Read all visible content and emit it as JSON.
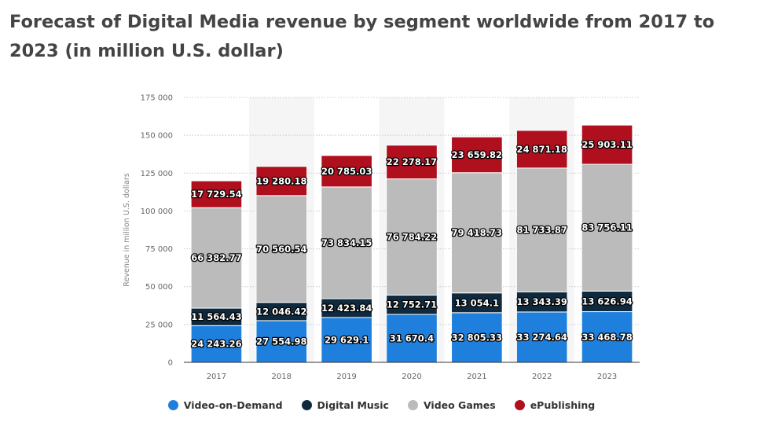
{
  "title": "Forecast of Digital Media revenue by segment worldwide from 2017 to 2023 (in million U.S. dollar)",
  "chart_data": {
    "type": "bar",
    "stacked": true,
    "title": "Forecast of Digital Media revenue by segment worldwide from 2017 to 2023 (in million U.S. dollar)",
    "xlabel": "",
    "ylabel": "Revenue in million U.S. dollars",
    "ylim": [
      0,
      175000
    ],
    "yticks": [
      0,
      25000,
      50000,
      75000,
      100000,
      125000,
      150000,
      175000
    ],
    "ytick_labels": [
      "0",
      "25 000",
      "50 000",
      "75 000",
      "100 000",
      "125 000",
      "150 000",
      "175 000"
    ],
    "grid": true,
    "legend_position": "bottom",
    "categories": [
      "2017",
      "2018",
      "2019",
      "2020",
      "2021",
      "2022",
      "2023"
    ],
    "series": [
      {
        "name": "Video-on-Demand",
        "color": "#1f7fdc",
        "values": [
          24243.26,
          27554.98,
          29629.1,
          31670.4,
          32805.33,
          33274.64,
          33468.78
        ],
        "labels": [
          "24 243.26",
          "27 554.98",
          "29 629.1",
          "31 670.4",
          "32 805.33",
          "33 274.64",
          "33 468.78"
        ]
      },
      {
        "name": "Digital Music",
        "color": "#0f2a3f",
        "values": [
          11564.43,
          12046.42,
          12423.84,
          12752.71,
          13054.1,
          13343.39,
          13626.94
        ],
        "labels": [
          "11 564.43",
          "12 046.42",
          "12 423.84",
          "12 752.71",
          "13 054.1",
          "13 343.39",
          "13 626.94"
        ]
      },
      {
        "name": "Video Games",
        "color": "#bbbbbb",
        "values": [
          66382.77,
          70560.54,
          73834.15,
          76784.22,
          79418.73,
          81733.87,
          83756.11
        ],
        "labels": [
          "66 382.77",
          "70 560.54",
          "73 834.15",
          "76 784.22",
          "79 418.73",
          "81 733.87",
          "83 756.11"
        ]
      },
      {
        "name": "ePublishing",
        "color": "#b00f1e",
        "values": [
          17729.54,
          19280.18,
          20785.03,
          22278.17,
          23659.82,
          24871.18,
          25903.11
        ],
        "labels": [
          "17 729.54",
          "19 280.18",
          "20 785.03",
          "22 278.17",
          "23 659.82",
          "24 871.18",
          "25 903.11"
        ]
      }
    ]
  }
}
